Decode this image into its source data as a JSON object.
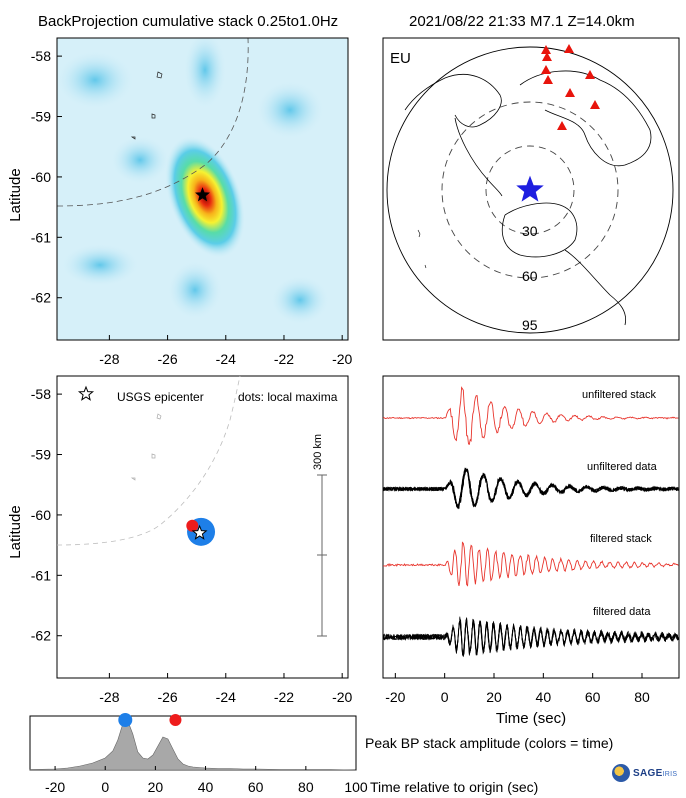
{
  "header": {
    "left_title": "BackProjection cumulative stack 0.25to1.0Hz",
    "right_title": "2021/08/22 21:33  M7.1  Z=14.0km"
  },
  "colors": {
    "red_trace": "#e8342c",
    "black_trace": "#000000",
    "area_fill": "#a8a8a8",
    "dot_blue": "#1e7fe8",
    "dot_red": "#ee1c1c",
    "station_red": "#e8140c",
    "epicenter_blue": "#1f1fe0"
  },
  "map_top": {
    "ylabel": "Latitude",
    "xticks": [
      "-28",
      "-26",
      "-24",
      "-22",
      "-20"
    ],
    "yticks": [
      "-58",
      "-59",
      "-60",
      "-61",
      "-62"
    ],
    "xlim": [
      -29.8,
      -19.8
    ],
    "ylim": [
      -62.7,
      -57.7
    ],
    "peak": {
      "lon": -24.8,
      "lat": -60.3
    }
  },
  "globe": {
    "region_label": "EU",
    "ring_labels": [
      "30",
      "60",
      "95"
    ],
    "icons": [
      "station-triangle-icon",
      "epicenter-star-icon"
    ]
  },
  "map_bottom": {
    "ylabel": "Latitude",
    "legend_star": "USGS epicenter",
    "legend_dots": "dots: local maxima",
    "scale_label": "300 km",
    "xticks": [
      "-28",
      "-26",
      "-24",
      "-22",
      "-20"
    ],
    "yticks": [
      "-58",
      "-59",
      "-60",
      "-61",
      "-62"
    ],
    "epicenter": {
      "lon": -24.9,
      "lat": -60.3
    },
    "maxima": [
      {
        "lon": -24.85,
        "lat": -60.28,
        "color": "blue",
        "size": "large"
      },
      {
        "lon": -25.15,
        "lat": -60.18,
        "color": "red",
        "size": "small"
      }
    ]
  },
  "traces": {
    "labels": [
      "unfiltered stack",
      "unfiltered data",
      "filtered stack",
      "filtered data"
    ],
    "xlabel": "Time (sec)",
    "xticks": [
      "-20",
      "0",
      "20",
      "40",
      "60",
      "80"
    ],
    "xlim": [
      -25,
      95
    ]
  },
  "chart_data": {
    "type": "area",
    "title": "Peak BP stack amplitude (colors = time)",
    "xlabel": "Time relative to origin (sec)",
    "xticks": [
      "-20",
      "0",
      "20",
      "40",
      "60",
      "80",
      "100"
    ],
    "xlim": [
      -30,
      100
    ],
    "ylim": [
      0,
      1
    ],
    "x": [
      -30,
      -20,
      -15,
      -10,
      -5,
      0,
      3,
      5,
      7,
      9,
      11,
      13,
      15,
      17,
      19,
      21,
      23,
      25,
      27,
      29,
      31,
      33,
      35,
      40,
      45,
      50,
      55,
      60,
      70,
      80,
      90,
      100
    ],
    "values": [
      0.01,
      0.02,
      0.04,
      0.08,
      0.14,
      0.24,
      0.38,
      0.6,
      0.92,
      0.98,
      0.72,
      0.36,
      0.24,
      0.22,
      0.3,
      0.48,
      0.66,
      0.62,
      0.42,
      0.22,
      0.12,
      0.08,
      0.06,
      0.04,
      0.03,
      0.03,
      0.02,
      0.02,
      0.01,
      0.01,
      0.01,
      0.0
    ],
    "markers": [
      {
        "x": 8,
        "color": "blue"
      },
      {
        "x": 28,
        "color": "red"
      }
    ]
  }
}
